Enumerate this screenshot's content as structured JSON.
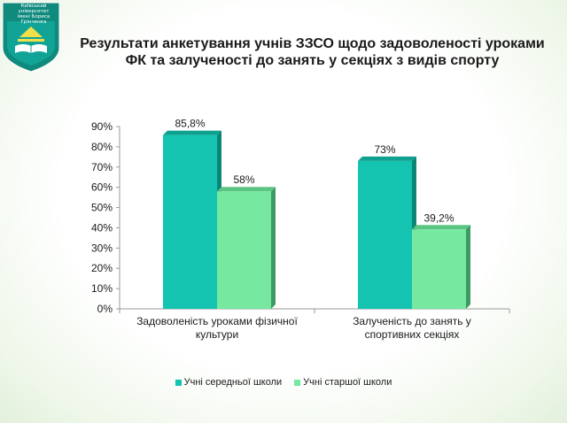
{
  "logo": {
    "line1": "Київський університет",
    "line2": "імені Бориса Грінченка"
  },
  "header": {
    "title_line1": "Результати анкетування учнів ЗЗСО щодо задоволеності уроками",
    "title_line2": "ФК та залученості до занять у секціях з видів спорту"
  },
  "colors": {
    "series1": "#14c4b0",
    "series1_side": "#0b8676",
    "series1_top": "#0fa090",
    "series2": "#77e8a0",
    "series2_side": "#3e9a63",
    "series2_top": "#5cc583"
  },
  "chart_data": {
    "type": "bar",
    "title": "",
    "xlabel": "",
    "ylabel": "",
    "ylim": [
      0,
      90
    ],
    "yticks": [
      "0%",
      "10%",
      "20%",
      "30%",
      "40%",
      "50%",
      "60%",
      "70%",
      "80%",
      "90%"
    ],
    "categories": [
      [
        "Задоволеність уроками фізичної",
        "культури"
      ],
      [
        "Залученість до занять у",
        "спортивних секціях"
      ]
    ],
    "series": [
      {
        "name": "Учні середньої школи",
        "values": [
          85.8,
          73
        ],
        "labels": [
          "85,8%",
          "73%"
        ]
      },
      {
        "name": "Учні старшої школи",
        "values": [
          58,
          39.2
        ],
        "labels": [
          "58%",
          "39,2%"
        ]
      }
    ],
    "legend_position": "bottom",
    "grid": false
  }
}
